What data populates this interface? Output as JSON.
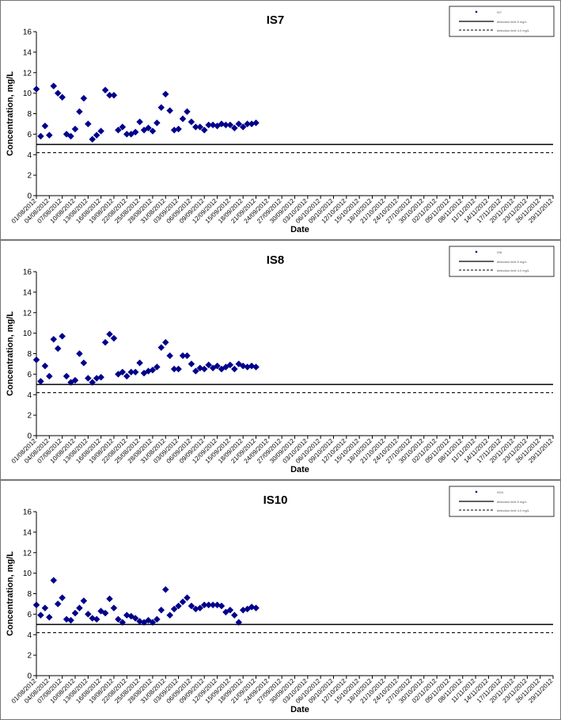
{
  "chart_data": [
    {
      "type": "scatter",
      "title": "IS7",
      "xlabel": "Date",
      "ylabel": "Concentration, mg/L",
      "ylim": [
        0,
        16
      ],
      "yticks": [
        0,
        2,
        4,
        6,
        8,
        10,
        12,
        14,
        16
      ],
      "grid": false,
      "legend_position": "top-right",
      "tick_labels": [
        "01/08/2012",
        "04/08/2012",
        "07/08/2012",
        "10/08/2012",
        "13/08/2012",
        "16/08/2012",
        "19/08/2012",
        "22/08/2012",
        "25/08/2012",
        "28/08/2012",
        "31/08/2012",
        "03/09/2012",
        "06/09/2012",
        "09/09/2012",
        "12/09/2012",
        "15/09/2012",
        "18/09/2012",
        "21/09/2012",
        "24/09/2012",
        "27/09/2012",
        "30/09/2012",
        "03/10/2012",
        "06/10/2012",
        "09/10/2012",
        "12/10/2012",
        "15/10/2012",
        "18/10/2012",
        "21/10/2012",
        "24/10/2012",
        "27/10/2012",
        "30/10/2012",
        "02/11/2012",
        "05/11/2012",
        "08/11/2012",
        "11/11/2012",
        "14/11/2012",
        "17/11/2012",
        "20/11/2012",
        "23/11/2012",
        "26/11/2012",
        "29/11/2012"
      ],
      "legend": [
        "IS7",
        "detection limit 5 mg/L",
        "detection limit 4.2 mg/L"
      ],
      "reference_lines": [
        {
          "y": 5.0,
          "style": "solid"
        },
        {
          "y": 4.2,
          "style": "dashed"
        }
      ],
      "series": [
        {
          "color": "#00008B",
          "marker": "diamond",
          "points": [
            [
              "01/08/2012",
              10.4
            ],
            [
              "02/08/2012",
              5.8
            ],
            [
              "03/08/2012",
              6.8
            ],
            [
              "04/08/2012",
              5.9
            ],
            [
              "05/08/2012",
              10.7
            ],
            [
              "06/08/2012",
              10.0
            ],
            [
              "07/08/2012",
              9.6
            ],
            [
              "08/08/2012",
              6.0
            ],
            [
              "09/08/2012",
              5.8
            ],
            [
              "10/08/2012",
              6.5
            ],
            [
              "11/08/2012",
              8.2
            ],
            [
              "12/08/2012",
              9.5
            ],
            [
              "13/08/2012",
              7.0
            ],
            [
              "14/08/2012",
              5.5
            ],
            [
              "15/08/2012",
              5.9
            ],
            [
              "16/08/2012",
              6.3
            ],
            [
              "17/08/2012",
              10.3
            ],
            [
              "18/08/2012",
              9.8
            ],
            [
              "19/08/2012",
              9.8
            ],
            [
              "20/08/2012",
              6.4
            ],
            [
              "21/08/2012",
              6.7
            ],
            [
              "22/08/2012",
              6.0
            ],
            [
              "23/08/2012",
              6.0
            ],
            [
              "24/08/2012",
              6.2
            ],
            [
              "25/08/2012",
              7.2
            ],
            [
              "26/08/2012",
              6.4
            ],
            [
              "27/08/2012",
              6.6
            ],
            [
              "28/08/2012",
              6.3
            ],
            [
              "29/08/2012",
              7.1
            ],
            [
              "30/08/2012",
              8.6
            ],
            [
              "31/08/2012",
              9.9
            ],
            [
              "01/09/2012",
              8.3
            ],
            [
              "02/09/2012",
              6.4
            ],
            [
              "03/09/2012",
              6.5
            ],
            [
              "04/09/2012",
              7.5
            ],
            [
              "05/09/2012",
              8.2
            ],
            [
              "06/09/2012",
              7.2
            ],
            [
              "07/09/2012",
              6.7
            ],
            [
              "08/09/2012",
              6.7
            ],
            [
              "09/09/2012",
              6.4
            ],
            [
              "10/09/2012",
              6.9
            ],
            [
              "11/09/2012",
              6.9
            ],
            [
              "12/09/2012",
              6.8
            ],
            [
              "13/09/2012",
              7.0
            ],
            [
              "14/09/2012",
              6.9
            ],
            [
              "15/09/2012",
              6.9
            ],
            [
              "16/09/2012",
              6.6
            ],
            [
              "17/09/2012",
              7.0
            ],
            [
              "18/09/2012",
              6.7
            ],
            [
              "19/09/2012",
              7.0
            ],
            [
              "20/09/2012",
              7.0
            ],
            [
              "21/09/2012",
              7.1
            ]
          ]
        }
      ]
    },
    {
      "type": "scatter",
      "title": "IS8",
      "xlabel": "Date",
      "ylabel": "Concentration, mg/L",
      "ylim": [
        0,
        16
      ],
      "yticks": [
        0,
        2,
        4,
        6,
        8,
        10,
        12,
        14,
        16
      ],
      "grid": false,
      "legend_position": "top-right",
      "tick_labels": [
        "01/08/2012",
        "04/08/2012",
        "07/08/2012",
        "10/08/2012",
        "13/08/2012",
        "16/08/2012",
        "19/08/2012",
        "22/08/2012",
        "25/08/2012",
        "28/08/2012",
        "31/08/2012",
        "03/09/2012",
        "06/09/2012",
        "09/09/2012",
        "12/09/2012",
        "15/09/2012",
        "18/09/2012",
        "21/09/2012",
        "24/09/2012",
        "27/09/2012",
        "30/09/2012",
        "03/10/2012",
        "06/10/2012",
        "09/10/2012",
        "12/10/2012",
        "15/10/2012",
        "18/10/2012",
        "21/10/2012",
        "24/10/2012",
        "27/10/2012",
        "30/10/2012",
        "02/11/2012",
        "05/11/2012",
        "08/11/2012",
        "11/11/2012",
        "14/11/2012",
        "17/11/2012",
        "20/11/2012",
        "23/11/2012",
        "26/11/2012",
        "29/11/2012"
      ],
      "legend": [
        "IS8",
        "detection limit 5 mg/L",
        "detection limit 4.2 mg/L"
      ],
      "reference_lines": [
        {
          "y": 5.0,
          "style": "solid"
        },
        {
          "y": 4.2,
          "style": "dashed"
        }
      ],
      "series": [
        {
          "color": "#00008B",
          "marker": "diamond",
          "points": [
            [
              "01/08/2012",
              7.4
            ],
            [
              "02/08/2012",
              5.3
            ],
            [
              "03/08/2012",
              6.8
            ],
            [
              "04/08/2012",
              5.8
            ],
            [
              "05/08/2012",
              9.4
            ],
            [
              "06/08/2012",
              8.5
            ],
            [
              "07/08/2012",
              9.7
            ],
            [
              "08/08/2012",
              5.8
            ],
            [
              "09/08/2012",
              5.2
            ],
            [
              "10/08/2012",
              5.4
            ],
            [
              "11/08/2012",
              8.0
            ],
            [
              "12/08/2012",
              7.1
            ],
            [
              "13/08/2012",
              5.6
            ],
            [
              "14/08/2012",
              5.2
            ],
            [
              "15/08/2012",
              5.6
            ],
            [
              "16/08/2012",
              5.7
            ],
            [
              "17/08/2012",
              9.1
            ],
            [
              "18/08/2012",
              9.9
            ],
            [
              "19/08/2012",
              9.5
            ],
            [
              "20/08/2012",
              6.0
            ],
            [
              "21/08/2012",
              6.2
            ],
            [
              "22/08/2012",
              5.8
            ],
            [
              "23/08/2012",
              6.2
            ],
            [
              "24/08/2012",
              6.2
            ],
            [
              "25/08/2012",
              7.1
            ],
            [
              "26/08/2012",
              6.1
            ],
            [
              "27/08/2012",
              6.3
            ],
            [
              "28/08/2012",
              6.4
            ],
            [
              "29/08/2012",
              6.7
            ],
            [
              "30/08/2012",
              8.6
            ],
            [
              "31/08/2012",
              9.1
            ],
            [
              "01/09/2012",
              7.8
            ],
            [
              "02/09/2012",
              6.5
            ],
            [
              "03/09/2012",
              6.5
            ],
            [
              "04/09/2012",
              7.8
            ],
            [
              "05/09/2012",
              7.8
            ],
            [
              "06/09/2012",
              7.0
            ],
            [
              "07/09/2012",
              6.3
            ],
            [
              "08/09/2012",
              6.6
            ],
            [
              "09/09/2012",
              6.5
            ],
            [
              "10/09/2012",
              6.9
            ],
            [
              "11/09/2012",
              6.6
            ],
            [
              "12/09/2012",
              6.8
            ],
            [
              "13/09/2012",
              6.5
            ],
            [
              "14/09/2012",
              6.7
            ],
            [
              "15/09/2012",
              6.9
            ],
            [
              "16/09/2012",
              6.5
            ],
            [
              "17/09/2012",
              7.0
            ],
            [
              "18/09/2012",
              6.8
            ],
            [
              "19/09/2012",
              6.7
            ],
            [
              "20/09/2012",
              6.8
            ],
            [
              "21/09/2012",
              6.7
            ]
          ]
        }
      ]
    },
    {
      "type": "scatter",
      "title": "IS10",
      "xlabel": "Date",
      "ylabel": "Concentration, mg/L",
      "ylim": [
        0,
        16
      ],
      "yticks": [
        0,
        2,
        4,
        6,
        8,
        10,
        12,
        14,
        16
      ],
      "grid": false,
      "legend_position": "top-right",
      "tick_labels": [
        "01/08/2012",
        "04/08/2012",
        "07/08/2012",
        "10/08/2012",
        "13/08/2012",
        "16/08/2012",
        "19/08/2012",
        "22/08/2012",
        "25/08/2012",
        "28/08/2012",
        "31/08/2012",
        "03/09/2012",
        "06/09/2012",
        "09/09/2012",
        "12/09/2012",
        "15/09/2012",
        "18/09/2012",
        "21/09/2012",
        "24/09/2012",
        "27/09/2012",
        "30/09/2012",
        "03/10/2012",
        "06/10/2012",
        "09/10/2012",
        "12/10/2012",
        "15/10/2012",
        "18/10/2012",
        "21/10/2012",
        "24/10/2012",
        "27/10/2012",
        "30/10/2012",
        "02/11/2012",
        "05/11/2012",
        "08/11/2012",
        "11/11/2012",
        "14/11/2012",
        "17/11/2012",
        "20/11/2012",
        "23/11/2012",
        "26/11/2012",
        "29/11/2012"
      ],
      "legend": [
        "IS10",
        "detection limit 5 mg/L",
        "detection limit 4.2 mg/L"
      ],
      "reference_lines": [
        {
          "y": 5.0,
          "style": "solid"
        },
        {
          "y": 4.2,
          "style": "dashed"
        }
      ],
      "series": [
        {
          "color": "#00008B",
          "marker": "diamond",
          "points": [
            [
              "01/08/2012",
              6.9
            ],
            [
              "02/08/2012",
              5.9
            ],
            [
              "03/08/2012",
              6.6
            ],
            [
              "04/08/2012",
              5.7
            ],
            [
              "05/08/2012",
              9.3
            ],
            [
              "06/08/2012",
              7.0
            ],
            [
              "07/08/2012",
              7.6
            ],
            [
              "08/08/2012",
              5.5
            ],
            [
              "09/08/2012",
              5.4
            ],
            [
              "10/08/2012",
              6.1
            ],
            [
              "11/08/2012",
              6.6
            ],
            [
              "12/08/2012",
              7.3
            ],
            [
              "13/08/2012",
              6.0
            ],
            [
              "14/08/2012",
              5.6
            ],
            [
              "15/08/2012",
              5.5
            ],
            [
              "16/08/2012",
              6.3
            ],
            [
              "17/08/2012",
              6.1
            ],
            [
              "18/08/2012",
              7.5
            ],
            [
              "19/08/2012",
              6.6
            ],
            [
              "20/08/2012",
              5.5
            ],
            [
              "21/08/2012",
              5.2
            ],
            [
              "22/08/2012",
              5.9
            ],
            [
              "23/08/2012",
              5.8
            ],
            [
              "24/08/2012",
              5.6
            ],
            [
              "25/08/2012",
              5.3
            ],
            [
              "26/08/2012",
              5.2
            ],
            [
              "27/08/2012",
              5.4
            ],
            [
              "28/08/2012",
              5.2
            ],
            [
              "29/08/2012",
              5.5
            ],
            [
              "30/08/2012",
              6.4
            ],
            [
              "31/08/2012",
              8.4
            ],
            [
              "01/09/2012",
              5.9
            ],
            [
              "02/09/2012",
              6.5
            ],
            [
              "03/09/2012",
              6.8
            ],
            [
              "04/09/2012",
              7.2
            ],
            [
              "05/09/2012",
              7.6
            ],
            [
              "06/09/2012",
              6.8
            ],
            [
              "07/09/2012",
              6.5
            ],
            [
              "08/09/2012",
              6.6
            ],
            [
              "09/09/2012",
              6.9
            ],
            [
              "10/09/2012",
              6.9
            ],
            [
              "11/09/2012",
              6.9
            ],
            [
              "12/09/2012",
              6.9
            ],
            [
              "13/09/2012",
              6.8
            ],
            [
              "14/09/2012",
              6.2
            ],
            [
              "15/09/2012",
              6.4
            ],
            [
              "16/09/2012",
              5.9
            ],
            [
              "17/09/2012",
              5.2
            ],
            [
              "18/09/2012",
              6.4
            ],
            [
              "19/09/2012",
              6.5
            ],
            [
              "20/09/2012",
              6.7
            ],
            [
              "21/09/2012",
              6.6
            ]
          ]
        }
      ]
    }
  ]
}
